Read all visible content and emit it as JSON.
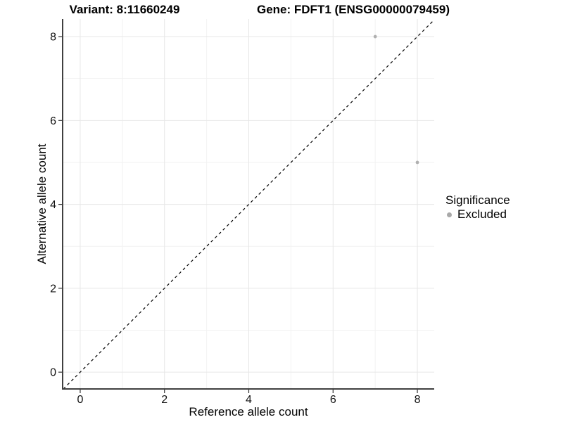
{
  "chart_data": {
    "type": "scatter",
    "titles": {
      "left": "Variant: 8:11660249",
      "right": "Gene: FDFT1 (ENSG00000079459)"
    },
    "xlabel": "Reference allele count",
    "ylabel": "Alternative allele count",
    "xlim": [
      -0.4,
      8.4
    ],
    "ylim": [
      -0.4,
      8.42
    ],
    "xticks": [
      0,
      2,
      4,
      6,
      8
    ],
    "yticks": [
      0,
      2,
      4,
      6,
      8
    ],
    "minor_x": [
      1,
      3,
      5,
      7
    ],
    "minor_y": [
      1,
      3,
      5,
      7
    ],
    "grid": true,
    "identity_line": {
      "style": "dashed",
      "color": "#000000",
      "equation": "y = x"
    },
    "series": [
      {
        "name": "Excluded",
        "color": "#b0b0b0",
        "points": [
          {
            "x": 7,
            "y": 8
          },
          {
            "x": 8,
            "y": 5
          }
        ]
      }
    ],
    "legend": {
      "title": "Significance",
      "position": "right",
      "items": [
        {
          "label": "Excluded",
          "color": "#a9a9a9"
        }
      ]
    },
    "colors": {
      "grid_major": "#e7e7e7",
      "grid_minor": "#f2f2f2",
      "axis_line": "#404040",
      "tick": "#333333",
      "background": "#ffffff"
    }
  }
}
